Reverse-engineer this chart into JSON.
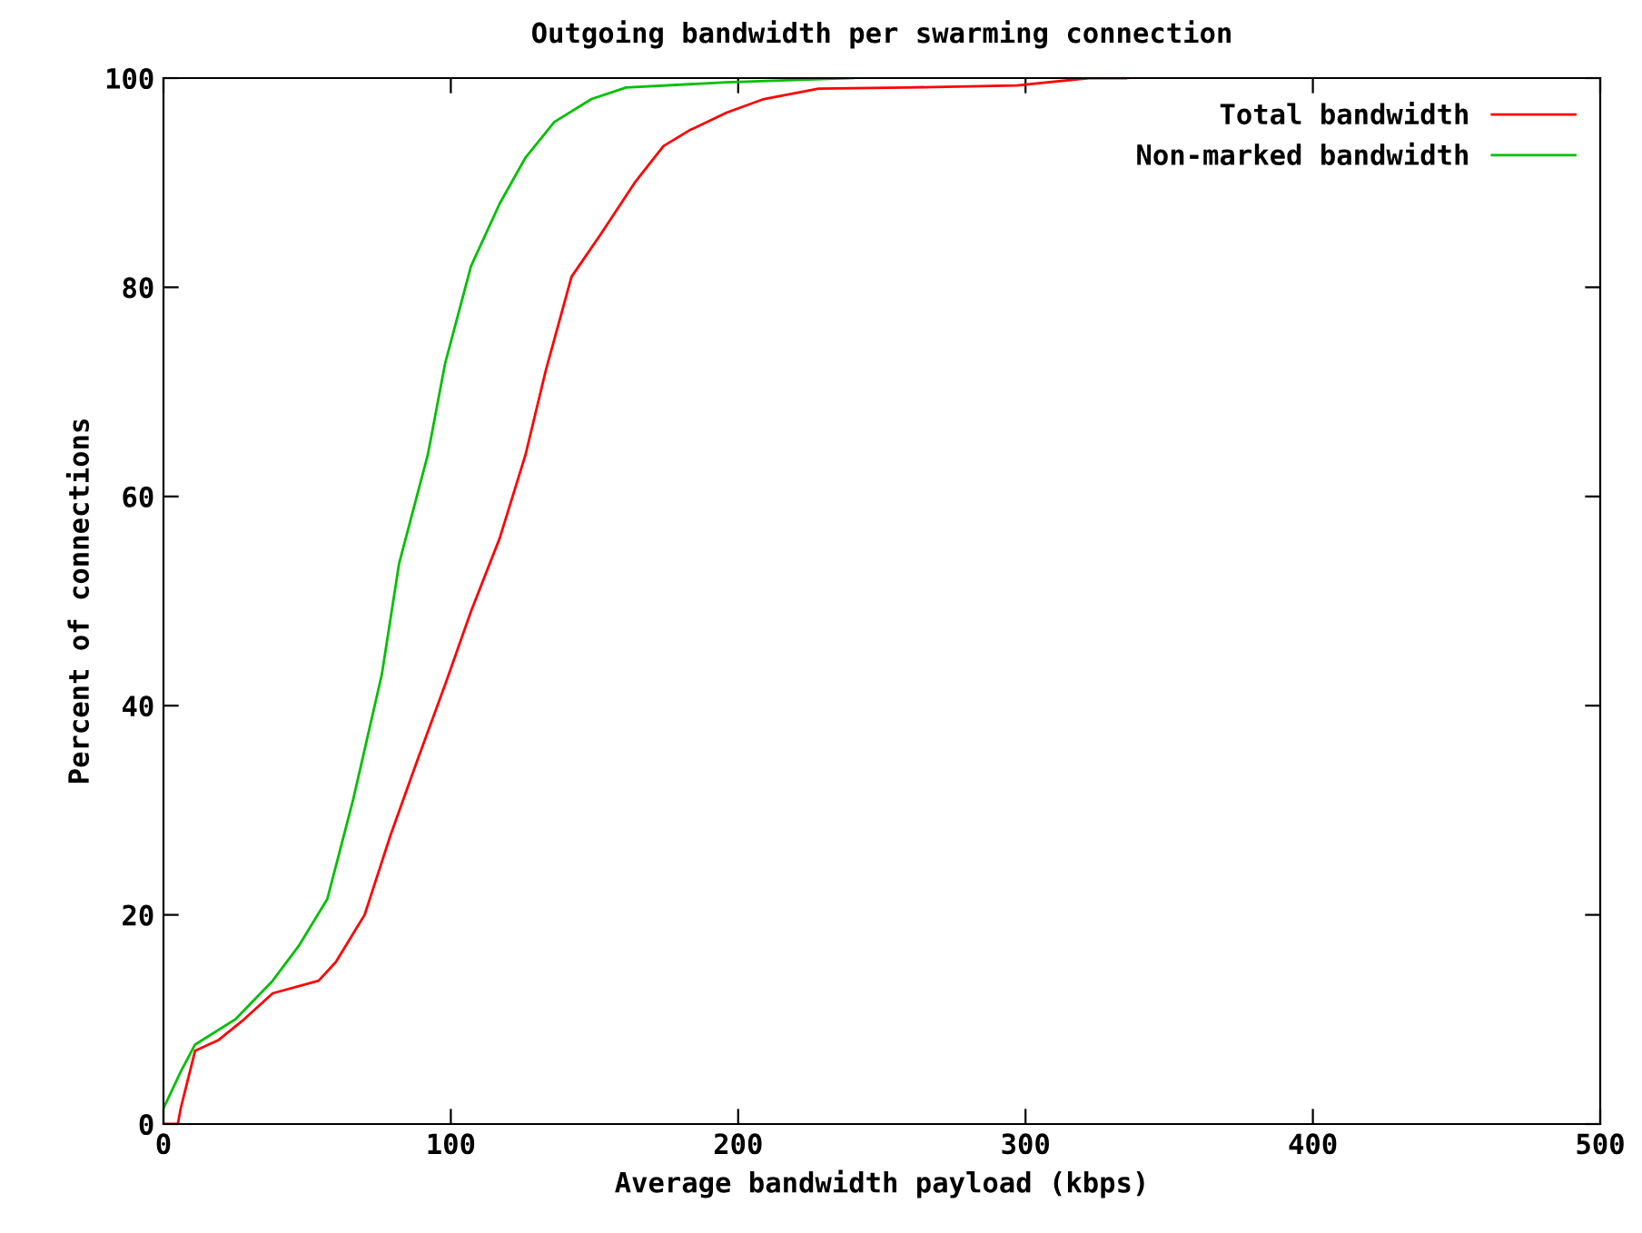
{
  "chart_data": {
    "type": "line",
    "title": "Outgoing bandwidth per swarming connection",
    "xlabel": "Average bandwidth payload (kbps)",
    "ylabel": "Percent of connections",
    "xlim": [
      0,
      500
    ],
    "ylim": [
      0,
      100
    ],
    "xticks": [
      0,
      100,
      200,
      300,
      400,
      500
    ],
    "yticks": [
      0,
      20,
      40,
      60,
      80,
      100
    ],
    "grid": false,
    "legend": "top right",
    "marker": "none",
    "line_style": "solid",
    "series": [
      {
        "name": "Total bandwidth",
        "color": "#ff0000",
        "x": [
          0,
          5,
          6,
          11,
          19,
          28,
          38,
          54,
          60,
          70,
          79,
          88,
          98,
          107,
          117,
          126,
          133,
          142,
          152,
          164,
          174,
          183,
          196,
          209,
          228,
          259,
          297,
          322,
          335
        ],
        "values": [
          0,
          0,
          1.5,
          7,
          8,
          10,
          12.5,
          13.7,
          15.5,
          20,
          27.6,
          34.5,
          42,
          49,
          56,
          64,
          72,
          81,
          85,
          90,
          93.5,
          95,
          96.7,
          98,
          99,
          99.1,
          99.3,
          100,
          100
        ]
      },
      {
        "name": "Non-marked bandwidth",
        "color": "#00c000",
        "x": [
          0,
          6,
          11,
          25,
          38,
          47,
          57,
          66,
          76,
          82,
          92,
          98,
          107,
          117,
          126,
          136,
          149,
          161,
          196,
          240
        ],
        "values": [
          1.5,
          5,
          7.6,
          10,
          13.7,
          17,
          21.5,
          31,
          43,
          53.6,
          64,
          72.7,
          82,
          88,
          92.4,
          95.8,
          98,
          99.1,
          99.6,
          100
        ]
      }
    ]
  }
}
